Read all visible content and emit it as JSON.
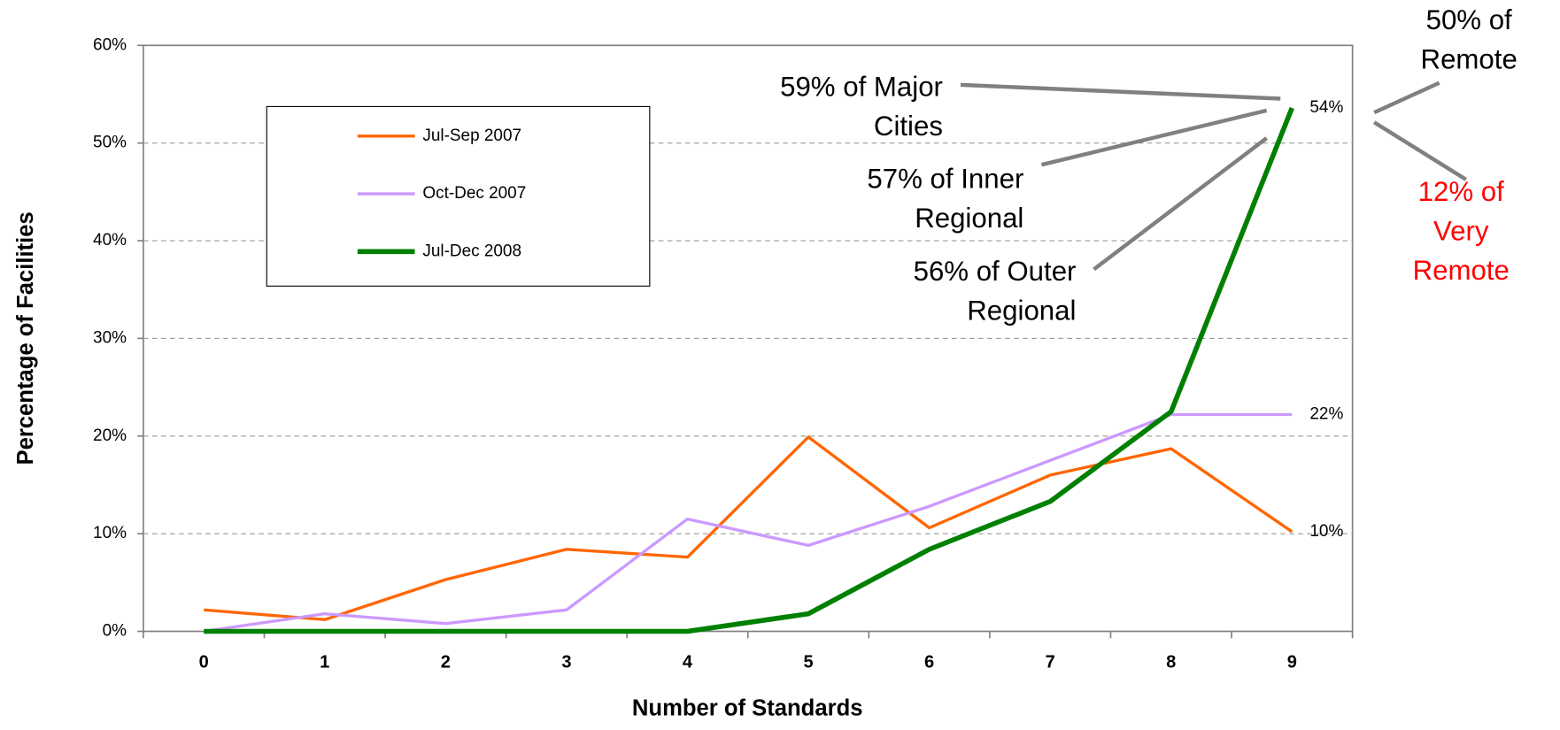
{
  "chart_data": {
    "type": "line",
    "x_label": "Number of Standards",
    "y_label": "Percentage of Facilities",
    "categories": [
      "0",
      "1",
      "2",
      "3",
      "4",
      "5",
      "6",
      "7",
      "8",
      "9"
    ],
    "ylim": [
      0,
      60
    ],
    "yticks": [
      {
        "value": 0,
        "label": "0%"
      },
      {
        "value": 10,
        "label": "10%"
      },
      {
        "value": 20,
        "label": "20%"
      },
      {
        "value": 30,
        "label": "30%"
      },
      {
        "value": 40,
        "label": "40%"
      },
      {
        "value": 50,
        "label": "50%"
      },
      {
        "value": 60,
        "label": "60%"
      }
    ],
    "grid": true,
    "legend": "upper left",
    "series": [
      {
        "name": "Jul-Sep 2007",
        "color": "#ff6600",
        "width": 3,
        "values": [
          2.2,
          1.2,
          5.3,
          8.4,
          7.6,
          19.9,
          10.6,
          16.0,
          18.7,
          10.2
        ],
        "value_labels": [
          null,
          null,
          null,
          null,
          null,
          null,
          null,
          null,
          null,
          "10%"
        ]
      },
      {
        "name": "Oct-Dec 2007",
        "color": "#cc99ff",
        "width": 3,
        "values": [
          0,
          1.8,
          0.8,
          2.2,
          11.5,
          8.8,
          12.8,
          17.5,
          22.2,
          22.2
        ],
        "value_labels": [
          null,
          null,
          null,
          null,
          null,
          null,
          null,
          null,
          null,
          "22%"
        ]
      },
      {
        "name": "Jul-Dec 2008",
        "color": "#008000",
        "width": 5,
        "values": [
          0,
          0,
          0,
          0,
          0,
          1.8,
          8.4,
          13.3,
          22.5,
          53.6
        ],
        "value_labels": [
          null,
          null,
          null,
          null,
          null,
          null,
          null,
          null,
          null,
          "54%"
        ]
      }
    ],
    "annotations": [
      {
        "lines": [
          "59% of Major",
          "Cities"
        ],
        "color": "#000000"
      },
      {
        "lines": [
          "57% of Inner",
          "Regional"
        ],
        "color": "#000000"
      },
      {
        "lines": [
          "56% of Outer",
          "Regional"
        ],
        "color": "#000000"
      },
      {
        "lines": [
          "50% of",
          "Remote"
        ],
        "color": "#000000"
      },
      {
        "lines": [
          "12% of",
          "Very",
          "Remote"
        ],
        "color": "#ff0000"
      }
    ]
  }
}
